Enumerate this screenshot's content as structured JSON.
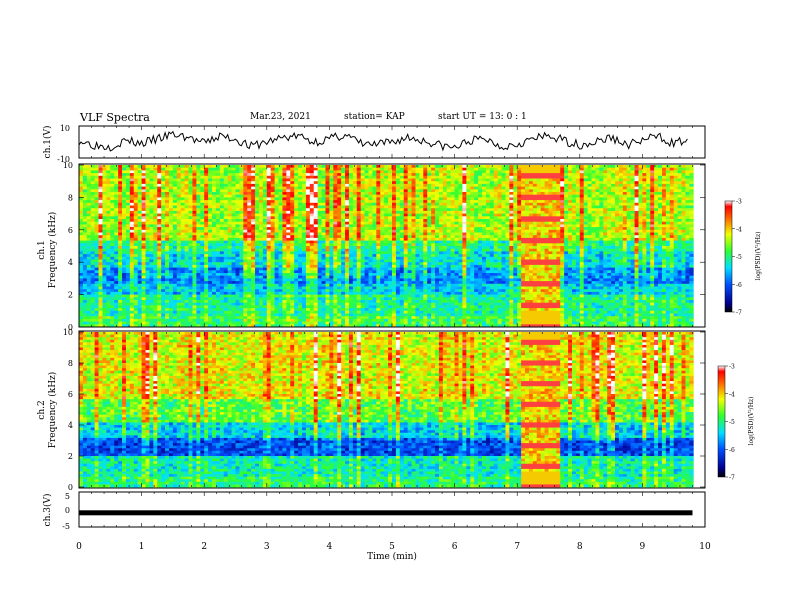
{
  "header": {
    "title": "VLF Spectra",
    "date": "Mar.23, 2021",
    "station": "station= KAP",
    "start": "start  UT =  13: 0  : 1"
  },
  "chart_data": [
    {
      "type": "line",
      "panel": "ch1-waveform",
      "ylabel": "ch.1(V)",
      "yticklabels": [
        "10",
        "-10"
      ],
      "ylim": [
        -10,
        10
      ],
      "xlim": [
        0,
        10
      ],
      "x": [
        0,
        0.25,
        0.5,
        0.75,
        1,
        1.25,
        1.5,
        1.75,
        2,
        2.25,
        2.5,
        2.75,
        3,
        3.25,
        3.5,
        3.75,
        4,
        4.25,
        4.5,
        4.75,
        5,
        5.25,
        5.5,
        5.75,
        6,
        6.25,
        6.5,
        6.75,
        7,
        7.25,
        7.5,
        7.75,
        8,
        8.25,
        8.5,
        8.75,
        9,
        9.25,
        9.5,
        9.75
      ],
      "values": [
        1,
        -2,
        -3,
        1,
        -1,
        2,
        5,
        3,
        -1,
        4,
        2,
        -3,
        0,
        3,
        4,
        0,
        2,
        5,
        -1,
        -2,
        0,
        3,
        1,
        -2,
        -4,
        1,
        2,
        -3,
        -1,
        2,
        4,
        1,
        -2,
        0,
        3,
        -2,
        1,
        4,
        -1,
        2
      ]
    },
    {
      "type": "heatmap",
      "panel": "ch1-spectrogram",
      "ylabel": "ch.1\nFrequency (kHz)",
      "yticks": [
        0,
        2,
        4,
        6,
        8,
        10
      ],
      "xlim": [
        0,
        10
      ],
      "ylim": [
        0,
        10
      ],
      "colorbar": {
        "label": "log(PSD)(V²/Hz)",
        "ticks": [
          "-3",
          "-4",
          "-5",
          "-6",
          "-7"
        ],
        "range": [
          -7,
          -3
        ]
      },
      "noise_bands_khz": [
        {
          "range": [
            0,
            0.6
          ],
          "level": -5.0
        },
        {
          "range": [
            0.6,
            2.0
          ],
          "level": -5.2
        },
        {
          "range": [
            2.0,
            2.6
          ],
          "level": -5.6
        },
        {
          "range": [
            2.6,
            3.6
          ],
          "level": -5.9
        },
        {
          "range": [
            3.6,
            4.6
          ],
          "level": -5.5
        },
        {
          "range": [
            4.6,
            5.4
          ],
          "level": -5.2
        },
        {
          "range": [
            5.4,
            10
          ],
          "level": -4.6
        }
      ],
      "interference_interval_min": [
        7.05,
        7.7
      ]
    },
    {
      "type": "heatmap",
      "panel": "ch2-spectrogram",
      "ylabel": "ch.2\nFrequency (kHz)",
      "yticks": [
        0,
        2,
        4,
        6,
        8,
        10
      ],
      "xlim": [
        0,
        10
      ],
      "ylim": [
        0,
        10
      ],
      "colorbar": {
        "label": "log(PSD)(V²/Hz)",
        "ticks": [
          "-3",
          "-4",
          "-5",
          "-6",
          "-7"
        ],
        "range": [
          -7,
          -3
        ]
      },
      "noise_bands_khz": [
        {
          "range": [
            0,
            0.6
          ],
          "level": -5.1
        },
        {
          "range": [
            0.6,
            2.0
          ],
          "level": -5.3
        },
        {
          "range": [
            2.0,
            3.2
          ],
          "level": -6.2
        },
        {
          "range": [
            3.2,
            4.2
          ],
          "level": -5.6
        },
        {
          "range": [
            4.2,
            5.6
          ],
          "level": -4.9
        },
        {
          "range": [
            5.6,
            10
          ],
          "level": -4.4
        }
      ],
      "interference_interval_min": [
        7.05,
        7.7
      ]
    },
    {
      "type": "line",
      "panel": "ch3-waveform",
      "ylabel": "ch.3(V)",
      "yticklabels": [
        "5",
        "0",
        "-5"
      ],
      "ylim": [
        -5,
        5
      ],
      "xlim": [
        0,
        10
      ],
      "x": [
        0,
        9.8
      ],
      "values": [
        -1,
        -1
      ],
      "xlabel": "Time  (min)",
      "xticklabels": [
        "0",
        "1",
        "2",
        "3",
        "4",
        "5",
        "6",
        "7",
        "8",
        "9",
        "10"
      ]
    }
  ]
}
